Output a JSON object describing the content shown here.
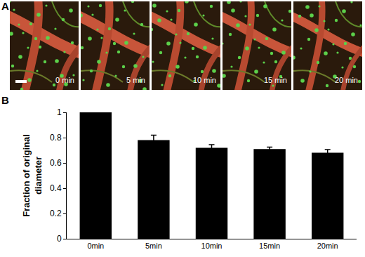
{
  "panels": {
    "A": {
      "label": "A",
      "frames": [
        "0 min",
        "5 min",
        "10 min",
        "15 min",
        "20 min"
      ]
    },
    "B": {
      "label": "B"
    }
  },
  "chart_data": {
    "type": "bar",
    "categories": [
      "0min",
      "5min",
      "10min",
      "15min",
      "20min"
    ],
    "values": [
      1,
      0.78,
      0.72,
      0.71,
      0.68
    ],
    "errors": [
      0,
      0.04,
      0.025,
      0.015,
      0.025
    ],
    "color": "#000000",
    "ylabel": "Fraction of original\ndiameter",
    "ylim": [
      0,
      1
    ],
    "yticks": [
      0,
      0.2,
      0.4,
      0.6,
      0.8,
      1
    ],
    "grid": false
  }
}
